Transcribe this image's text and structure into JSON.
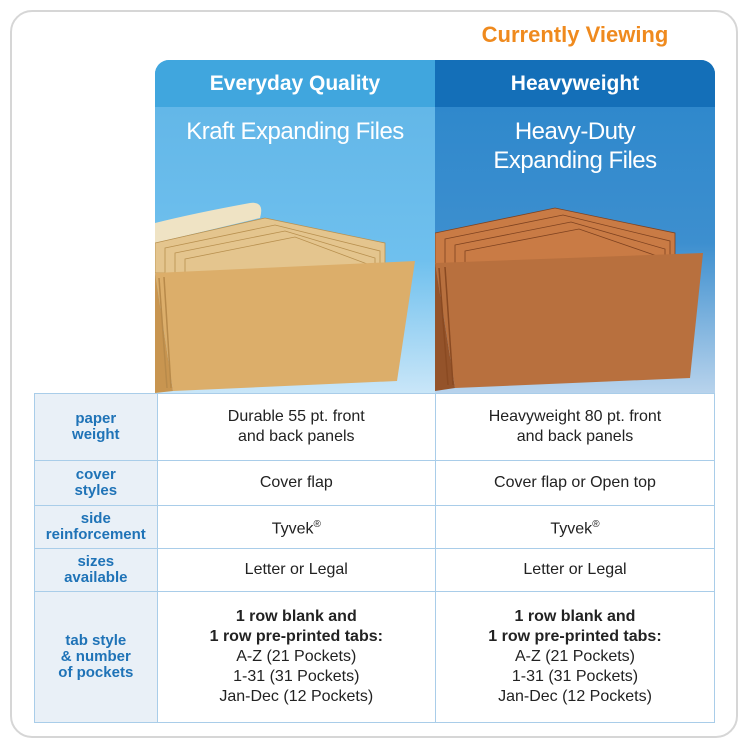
{
  "currently_viewing": "Currently Viewing",
  "columns": [
    {
      "tier": "Everyday Quality",
      "product": "Kraft Expanding Files"
    },
    {
      "tier": "Heavyweight",
      "product_line1": "Heavy-Duty",
      "product_line2": "Expanding Files"
    }
  ],
  "rows": [
    {
      "label1": "paper",
      "label2": "weight",
      "v1a": "Durable 55 pt. front",
      "v1b": "and back panels",
      "v2a": "Heavyweight 80 pt. front",
      "v2b": "and back panels"
    },
    {
      "label1": "cover",
      "label2": "styles",
      "v1": "Cover flap",
      "v2": "Cover flap or Open top"
    },
    {
      "label1": "side",
      "label2": "reinforcement",
      "v1": "Tyvek",
      "v2": "Tyvek",
      "reg": "®"
    },
    {
      "label1": "sizes",
      "label2": "available",
      "v1": "Letter or Legal",
      "v2": "Letter or Legal"
    },
    {
      "label1": "tab style",
      "label2": "& number",
      "label3": "of pockets",
      "b1": "1 row blank and",
      "b2": "1 row pre-printed tabs:",
      "l1": "A-Z (21 Pockets)",
      "l2": "1-31 (31 Pockets)",
      "l3": "Jan-Dec (12 Pockets)"
    }
  ],
  "colors": {
    "accent": "#ef8a1e",
    "label": "#1f73b7",
    "everyday": "#40a6de",
    "heavy": "#146fb8"
  }
}
